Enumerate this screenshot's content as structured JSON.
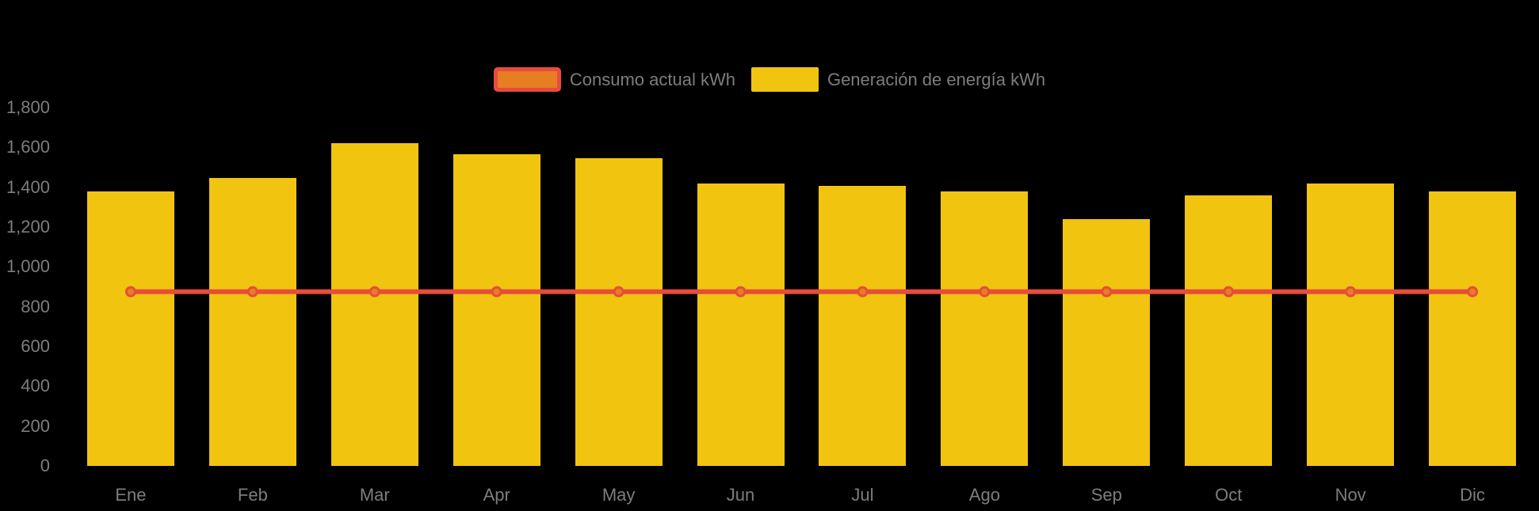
{
  "background": "#000000",
  "colors": {
    "bar": "#F1C40F",
    "line": "#E74C3C",
    "point_fill": "#E67E22",
    "text": "#7D7D7D"
  },
  "legend": {
    "items": [
      {
        "label": "Consumo actual kWh",
        "type": "line"
      },
      {
        "label": "Generación de energía kWh",
        "type": "bar"
      }
    ]
  },
  "chart_data": {
    "type": "bar+line",
    "categories": [
      "Ene",
      "Feb",
      "Mar",
      "Apr",
      "May",
      "Jun",
      "Jul",
      "Ago",
      "Sep",
      "Oct",
      "Nov",
      "Dic"
    ],
    "series": [
      {
        "name": "Consumo actual kWh",
        "type": "line",
        "color": "#E74C3C",
        "point_fill": "#E67E22",
        "values": [
          875,
          875,
          875,
          875,
          875,
          875,
          875,
          875,
          875,
          875,
          875,
          875
        ]
      },
      {
        "name": "Generación de energía kWh",
        "type": "bar",
        "color": "#F1C40F",
        "values": [
          1380,
          1445,
          1620,
          1565,
          1545,
          1420,
          1405,
          1380,
          1240,
          1360,
          1420,
          1380
        ]
      }
    ],
    "title": "",
    "xlabel": "",
    "ylabel": "",
    "ylim": [
      0,
      1800
    ],
    "ytick_step": 200,
    "ytick_labels": [
      "0",
      "200",
      "400",
      "600",
      "800",
      "1,000",
      "1,200",
      "1,400",
      "1,600",
      "1,800"
    ],
    "grid": false,
    "legend_position": "top-center"
  }
}
